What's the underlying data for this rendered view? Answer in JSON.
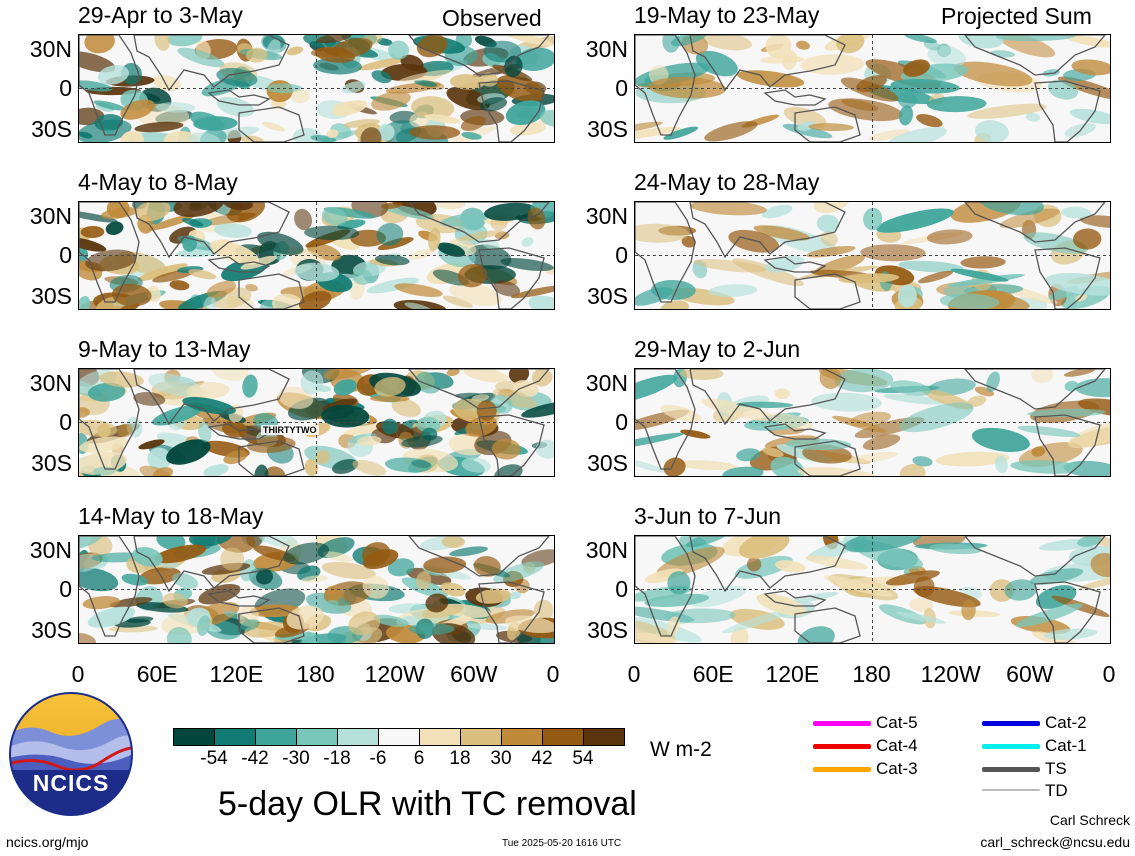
{
  "chart_data": {
    "type": "heatmap",
    "title": "5-day OLR with TC removal",
    "units": "W m-2",
    "headers": {
      "left": "Observed",
      "right": "Projected Sum"
    },
    "lat_ticks": [
      "30N",
      "0",
      "30S"
    ],
    "lon_ticks": [
      "0",
      "60E",
      "120E",
      "180",
      "120W",
      "60W",
      "0"
    ],
    "colorbar": {
      "ticks": [
        "-54",
        "-42",
        "-30",
        "-18",
        "-6",
        "6",
        "18",
        "30",
        "42",
        "54"
      ],
      "colors": [
        "#00463c",
        "#0f7b73",
        "#3fa59b",
        "#79c6bb",
        "#b6e1db",
        "#f7f7f7",
        "#f2e1b8",
        "#dbbf7e",
        "#bf8a3a",
        "#955a12",
        "#5a340c"
      ]
    },
    "panels": [
      {
        "period": "29-Apr to 3-May",
        "column": "observed"
      },
      {
        "period": "4-May to 8-May",
        "column": "observed"
      },
      {
        "period": "9-May to 13-May",
        "column": "observed",
        "annotation": "THIRTYTWO"
      },
      {
        "period": "14-May to 18-May",
        "column": "observed"
      },
      {
        "period": "19-May to 23-May",
        "column": "projected"
      },
      {
        "period": "24-May to 28-May",
        "column": "projected"
      },
      {
        "period": "29-May to 2-Jun",
        "column": "projected"
      },
      {
        "period": "3-Jun to 7-Jun",
        "column": "projected"
      }
    ],
    "legend": {
      "tc_categories": [
        {
          "label": "Cat-5",
          "color": "#ff00ff"
        },
        {
          "label": "Cat-4",
          "color": "#ee0000"
        },
        {
          "label": "Cat-3",
          "color": "#ffa500"
        },
        {
          "label": "Cat-2",
          "color": "#0000dd"
        },
        {
          "label": "Cat-1",
          "color": "#00eeee"
        },
        {
          "label": "TS",
          "color": "#555555"
        },
        {
          "label": "TD",
          "color": "#bbbbbb"
        }
      ]
    }
  },
  "logo": {
    "text": "NCICS"
  },
  "footer": {
    "url": "ncics.org/mjo",
    "timestamp": "Tue 2025-05-20 1616 UTC",
    "author": "Carl Schreck",
    "email": "carl_schreck@ncsu.edu"
  }
}
